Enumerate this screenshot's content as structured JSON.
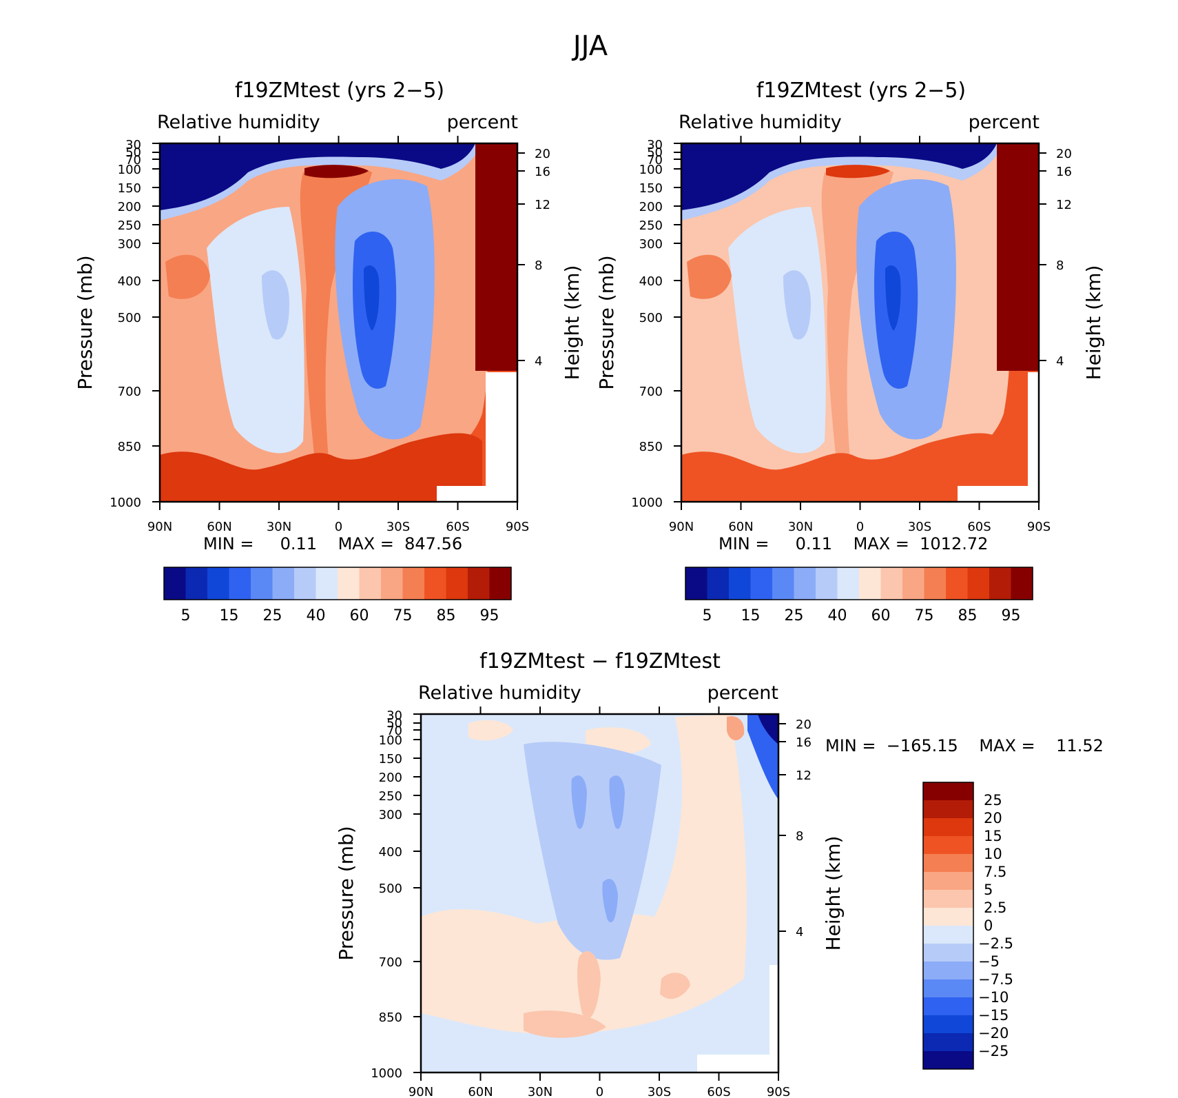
{
  "figure_title": "JJA",
  "chart_data": [
    {
      "type": "heatmap",
      "title": "f19ZMtest (yrs 2−5)",
      "left_label": "Relative humidity",
      "right_label": "percent",
      "xlabel": "",
      "ylabel": "Pressure (mb)",
      "ylabel_right": "Height (km)",
      "x_ticks": [
        "90N",
        "60N",
        "30N",
        "0",
        "30S",
        "60S",
        "90S"
      ],
      "y_ticks": [
        30,
        50,
        70,
        100,
        150,
        200,
        250,
        300,
        400,
        500,
        700,
        850,
        1000
      ],
      "y_ticks_right": [
        20,
        16,
        12,
        8,
        4
      ],
      "stats": "MIN =     0.11    MAX =  847.56",
      "colorbar_labels": [
        "5",
        "15",
        "25",
        "40",
        "60",
        "75",
        "85",
        "95"
      ],
      "colors": [
        "#0a0a86",
        "#0b29b2",
        "#1047d8",
        "#2f62f0",
        "#5a88f5",
        "#8cacf7",
        "#b6cbf8",
        "#dbe8fb",
        "#fde6d6",
        "#fbc6ad",
        "#f9a684",
        "#f47f52",
        "#ef5324",
        "#dd380e",
        "#b31c07",
        "#870000"
      ]
    },
    {
      "type": "heatmap",
      "title": "f19ZMtest (yrs 2−5)",
      "left_label": "Relative humidity",
      "right_label": "percent",
      "xlabel": "",
      "ylabel": "Pressure (mb)",
      "ylabel_right": "Height (km)",
      "x_ticks": [
        "90N",
        "60N",
        "30N",
        "0",
        "30S",
        "60S",
        "90S"
      ],
      "y_ticks": [
        30,
        50,
        70,
        100,
        150,
        200,
        250,
        300,
        400,
        500,
        700,
        850,
        1000
      ],
      "y_ticks_right": [
        20,
        16,
        12,
        8,
        4
      ],
      "stats": "MIN =     0.11    MAX =  1012.72",
      "colorbar_labels": [
        "5",
        "15",
        "25",
        "40",
        "60",
        "75",
        "85",
        "95"
      ],
      "colors": [
        "#0a0a86",
        "#0b29b2",
        "#1047d8",
        "#2f62f0",
        "#5a88f5",
        "#8cacf7",
        "#b6cbf8",
        "#dbe8fb",
        "#fde6d6",
        "#fbc6ad",
        "#f9a684",
        "#f47f52",
        "#ef5324",
        "#dd380e",
        "#b31c07",
        "#870000"
      ]
    },
    {
      "type": "heatmap",
      "title": "f19ZMtest − f19ZMtest",
      "left_label": "Relative humidity",
      "right_label": "percent",
      "xlabel": "",
      "ylabel": "Pressure (mb)",
      "ylabel_right": "Height (km)",
      "x_ticks": [
        "90N",
        "60N",
        "30N",
        "0",
        "30S",
        "60S",
        "90S"
      ],
      "y_ticks": [
        30,
        50,
        70,
        100,
        150,
        200,
        250,
        300,
        400,
        500,
        700,
        850,
        1000
      ],
      "y_ticks_right": [
        20,
        16,
        12,
        8,
        4
      ],
      "stats": "MIN =  −165.15    MAX =    11.52",
      "colorbar_labels": [
        "25",
        "20",
        "15",
        "10",
        "7.5",
        "5",
        "2.5",
        "0",
        "−2.5",
        "−5",
        "−7.5",
        "−10",
        "−15",
        "−20",
        "−25"
      ],
      "colors": [
        "#870000",
        "#b31c07",
        "#dd380e",
        "#ef5324",
        "#f47f52",
        "#f9a684",
        "#fbc6ad",
        "#fde6d6",
        "#dbe8fb",
        "#b6cbf8",
        "#8cacf7",
        "#5a88f5",
        "#2f62f0",
        "#1047d8",
        "#0b29b2",
        "#0a0a86"
      ]
    }
  ]
}
